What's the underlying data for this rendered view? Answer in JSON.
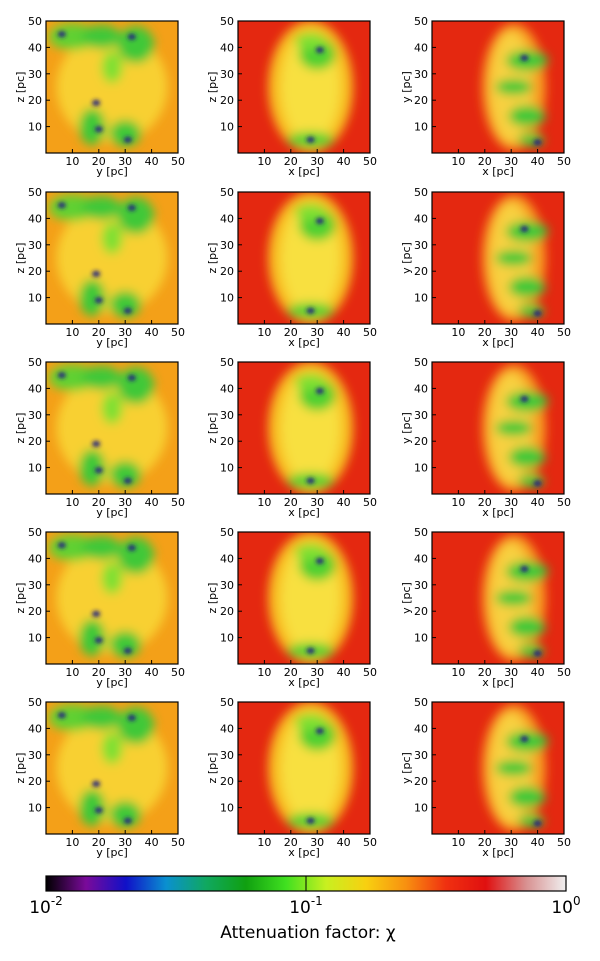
{
  "chart_data": [
    {
      "type": "heatmap",
      "xlabel": "y [pc]",
      "ylabel": "z [pc]",
      "xlim": [
        0,
        50
      ],
      "ylim": [
        0,
        50
      ],
      "xticks": [
        10,
        20,
        30,
        40,
        50
      ],
      "yticks": [
        10,
        20,
        30,
        40,
        50
      ]
    },
    {
      "type": "heatmap",
      "xlabel": "x [pc]",
      "ylabel": "z [pc]",
      "xlim": [
        0,
        50
      ],
      "ylim": [
        0,
        50
      ],
      "xticks": [
        10,
        20,
        30,
        40,
        50
      ],
      "yticks": [
        10,
        20,
        30,
        40,
        50
      ]
    },
    {
      "type": "heatmap",
      "xlabel": "x [pc]",
      "ylabel": "y [pc]",
      "xlim": [
        0,
        50
      ],
      "ylim": [
        0,
        50
      ],
      "xticks": [
        10,
        20,
        30,
        40,
        50
      ],
      "yticks": [
        10,
        20,
        30,
        40,
        50
      ]
    },
    {
      "type": "heatmap",
      "xlabel": "y [pc]",
      "ylabel": "z [pc]",
      "xlim": [
        0,
        50
      ],
      "ylim": [
        0,
        50
      ],
      "xticks": [
        10,
        20,
        30,
        40,
        50
      ],
      "yticks": [
        10,
        20,
        30,
        40,
        50
      ]
    },
    {
      "type": "heatmap",
      "xlabel": "x [pc]",
      "ylabel": "z [pc]",
      "xlim": [
        0,
        50
      ],
      "ylim": [
        0,
        50
      ],
      "xticks": [
        10,
        20,
        30,
        40,
        50
      ],
      "yticks": [
        10,
        20,
        30,
        40,
        50
      ]
    },
    {
      "type": "heatmap",
      "xlabel": "x [pc]",
      "ylabel": "y [pc]",
      "xlim": [
        0,
        50
      ],
      "ylim": [
        0,
        50
      ],
      "xticks": [
        10,
        20,
        30,
        40,
        50
      ],
      "yticks": [
        10,
        20,
        30,
        40,
        50
      ]
    },
    {
      "type": "heatmap",
      "xlabel": "y [pc]",
      "ylabel": "z [pc]",
      "xlim": [
        0,
        50
      ],
      "ylim": [
        0,
        50
      ],
      "xticks": [
        10,
        20,
        30,
        40,
        50
      ],
      "yticks": [
        10,
        20,
        30,
        40,
        50
      ]
    },
    {
      "type": "heatmap",
      "xlabel": "x [pc]",
      "ylabel": "z [pc]",
      "xlim": [
        0,
        50
      ],
      "ylim": [
        0,
        50
      ],
      "xticks": [
        10,
        20,
        30,
        40,
        50
      ],
      "yticks": [
        10,
        20,
        30,
        40,
        50
      ]
    },
    {
      "type": "heatmap",
      "xlabel": "x [pc]",
      "ylabel": "y [pc]",
      "xlim": [
        0,
        50
      ],
      "ylim": [
        0,
        50
      ],
      "xticks": [
        10,
        20,
        30,
        40,
        50
      ],
      "yticks": [
        10,
        20,
        30,
        40,
        50
      ]
    },
    {
      "type": "heatmap",
      "xlabel": "y [pc]",
      "ylabel": "z [pc]",
      "xlim": [
        0,
        50
      ],
      "ylim": [
        0,
        50
      ],
      "xticks": [
        10,
        20,
        30,
        40,
        50
      ],
      "yticks": [
        10,
        20,
        30,
        40,
        50
      ]
    },
    {
      "type": "heatmap",
      "xlabel": "x [pc]",
      "ylabel": "z [pc]",
      "xlim": [
        0,
        50
      ],
      "ylim": [
        0,
        50
      ],
      "xticks": [
        10,
        20,
        30,
        40,
        50
      ],
      "yticks": [
        10,
        20,
        30,
        40,
        50
      ]
    },
    {
      "type": "heatmap",
      "xlabel": "x [pc]",
      "ylabel": "y [pc]",
      "xlim": [
        0,
        50
      ],
      "ylim": [
        0,
        50
      ],
      "xticks": [
        10,
        20,
        30,
        40,
        50
      ],
      "yticks": [
        10,
        20,
        30,
        40,
        50
      ]
    },
    {
      "type": "heatmap",
      "xlabel": "y [pc]",
      "ylabel": "z [pc]",
      "xlim": [
        0,
        50
      ],
      "ylim": [
        0,
        50
      ],
      "xticks": [
        10,
        20,
        30,
        40,
        50
      ],
      "yticks": [
        10,
        20,
        30,
        40,
        50
      ]
    },
    {
      "type": "heatmap",
      "xlabel": "x [pc]",
      "ylabel": "z [pc]",
      "xlim": [
        0,
        50
      ],
      "ylim": [
        0,
        50
      ],
      "xticks": [
        10,
        20,
        30,
        40,
        50
      ],
      "yticks": [
        10,
        20,
        30,
        40,
        50
      ]
    },
    {
      "type": "heatmap",
      "xlabel": "x [pc]",
      "ylabel": "y [pc]",
      "xlim": [
        0,
        50
      ],
      "ylim": [
        0,
        50
      ],
      "xticks": [
        10,
        20,
        30,
        40,
        50
      ],
      "yticks": [
        10,
        20,
        30,
        40,
        50
      ]
    }
  ],
  "colorbar": {
    "label": "Attenuation factor: χ",
    "log_scale": true,
    "lim": [
      0.01,
      1
    ],
    "ticks": [
      {
        "value": 0.01,
        "label": "10",
        "exponent": "-2"
      },
      {
        "value": 0.1,
        "label": "10",
        "exponent": "-1"
      },
      {
        "value": 1,
        "label": "10",
        "exponent": "0"
      }
    ],
    "colors": [
      "#000000",
      "#7a0a9a",
      "#1010c8",
      "#0a90d0",
      "#10a860",
      "#10a010",
      "#40e020",
      "#c8f020",
      "#f8d010",
      "#f89010",
      "#f03010",
      "#e01010",
      "#d89090",
      "#f0f0f0"
    ]
  }
}
